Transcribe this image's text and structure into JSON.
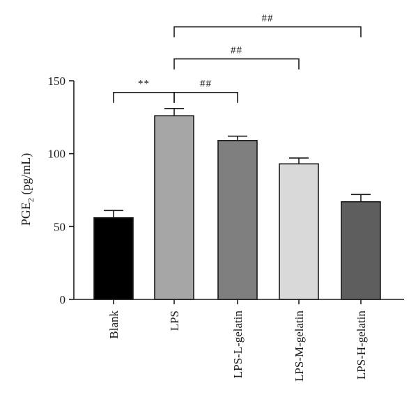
{
  "chart_data": {
    "type": "bar",
    "title": "",
    "xlabel": "",
    "ylabel": {
      "prefix": "PGE",
      "subscript": "2",
      "suffix": " (pg/mL)"
    },
    "ylim": [
      0,
      150
    ],
    "yticks": [
      0,
      50,
      100,
      150
    ],
    "categories": [
      "Blank",
      "LPS",
      "LPS-L-gelatin",
      "LPS-M-gelatin",
      "LPS-H-gelatin"
    ],
    "values": [
      56,
      126,
      109,
      93,
      67
    ],
    "errors": [
      5,
      5,
      3,
      4,
      5
    ],
    "bar_colors": [
      "#000000",
      "#a6a6a6",
      "#7f7f7f",
      "#d9d9d9",
      "#5e5e5e"
    ],
    "significance": [
      {
        "from": 0,
        "to": 1,
        "label": "**",
        "y": 142
      },
      {
        "from": 1,
        "to": 2,
        "label": "##",
        "y": 142
      },
      {
        "from": 1,
        "to": 3,
        "label": "##",
        "y": 165
      },
      {
        "from": 1,
        "to": 4,
        "label": "##",
        "y": 187
      }
    ],
    "grid": false,
    "legend": "none"
  }
}
